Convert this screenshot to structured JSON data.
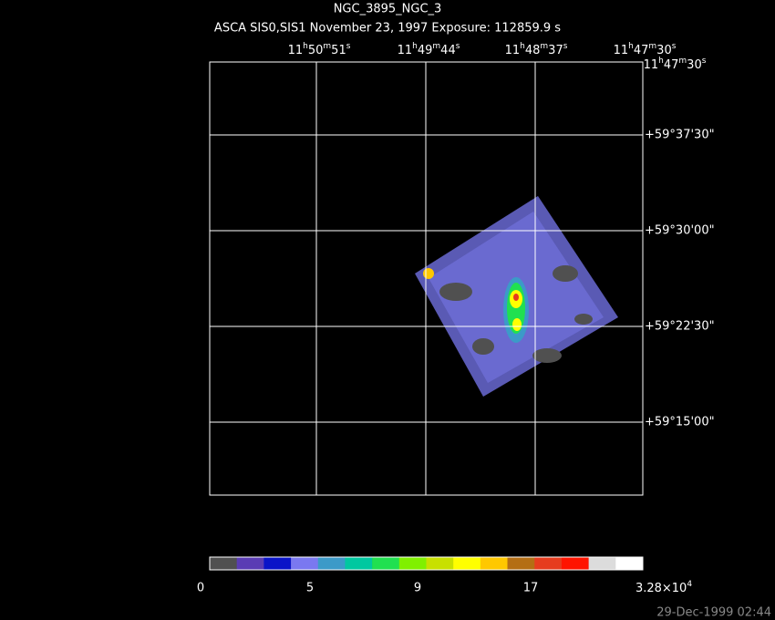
{
  "title": "NGC_3895_NGC_3",
  "subtitle": "ASCA SIS0,SIS1 November 23, 1997 Exposure: 112859.9 s",
  "ra_labels": [
    [
      "11",
      "h",
      "50",
      "m",
      "51",
      "s"
    ],
    [
      "11",
      "h",
      "49",
      "m",
      "44",
      "s"
    ],
    [
      "11",
      "h",
      "48",
      "m",
      "37",
      "s"
    ],
    [
      "11",
      "h",
      "47",
      "m",
      "30",
      "s"
    ]
  ],
  "ra_corner_label": [
    "11",
    "h",
    "47",
    "m",
    "30",
    "s"
  ],
  "dec_labels": [
    "+59°37'30\"",
    "+59°30'00\"",
    "+59°22'30\"",
    "+59°15'00\""
  ],
  "colorbar": {
    "colors": [
      "#505050",
      "#5a3cb4",
      "#0a14c8",
      "#7a78f0",
      "#3c9ac8",
      "#00c8a0",
      "#20e050",
      "#80f000",
      "#c8e000",
      "#ffff00",
      "#ffc800",
      "#b46e14",
      "#e63c1e",
      "#ff1400",
      "#dcdcdc",
      "#ffffff"
    ],
    "labels": [
      "0",
      "5",
      "9",
      "17",
      [
        "3.28×10",
        "4"
      ]
    ]
  },
  "timestamp": "29-Dec-1999 02:44"
}
